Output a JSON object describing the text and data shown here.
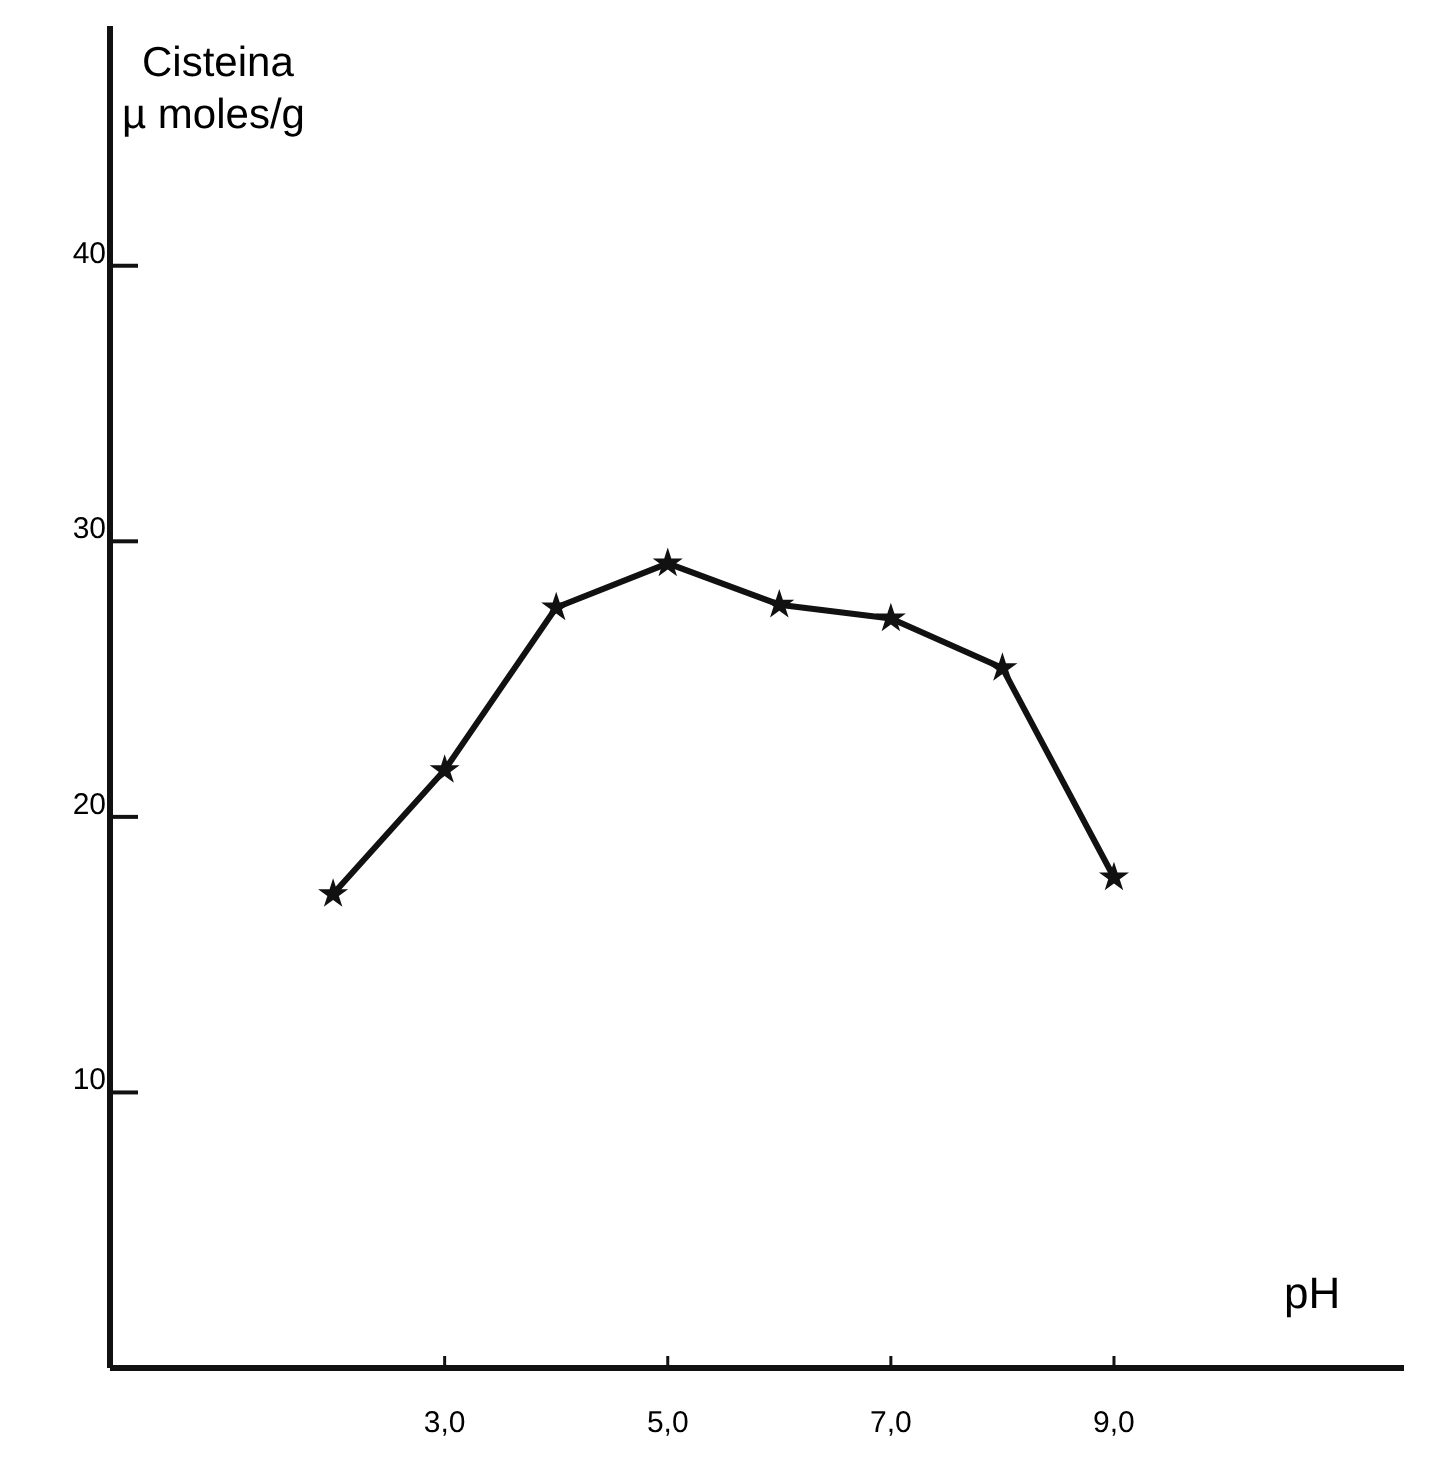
{
  "chart_data": {
    "type": "line",
    "ylabel": "Cisteina\nµ moles/g",
    "xlabel": "pH",
    "x": [
      2,
      3,
      4,
      5,
      6,
      7,
      8,
      9
    ],
    "series": [
      {
        "color": "#111111",
        "values": [
          17.2,
          21.7,
          27.6,
          29.2,
          27.7,
          27.2,
          25.4,
          17.8
        ]
      }
    ],
    "xlim": [
      0,
      11.6
    ],
    "ylim": [
      0,
      48.7
    ],
    "xticks": [
      {
        "value": 3,
        "label": "3,0"
      },
      {
        "value": 5,
        "label": "5,0"
      },
      {
        "value": 7,
        "label": "7,0"
      },
      {
        "value": 9,
        "label": "9,0"
      }
    ],
    "yticks": [
      10,
      20,
      30,
      40
    ],
    "grid": false,
    "marker": "star",
    "line_style": "solid"
  }
}
